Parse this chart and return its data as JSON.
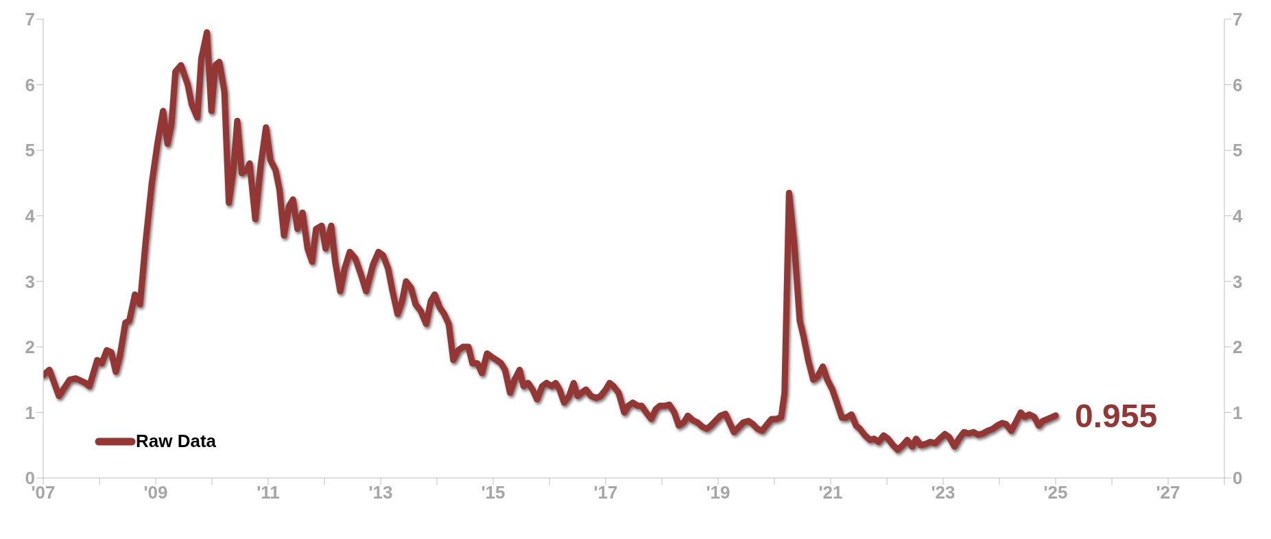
{
  "chart_data": {
    "type": "line",
    "x": [
      2007.0,
      2007.11,
      2007.28,
      2007.47,
      2007.58,
      2007.75,
      2007.82,
      2007.96,
      2008.04,
      2008.13,
      2008.21,
      2008.29,
      2008.36,
      2008.46,
      2008.53,
      2008.63,
      2008.72,
      2008.82,
      2008.93,
      2009.03,
      2009.13,
      2009.21,
      2009.28,
      2009.35,
      2009.45,
      2009.57,
      2009.64,
      2009.74,
      2009.81,
      2009.91,
      2009.99,
      2010.06,
      2010.13,
      2010.22,
      2010.3,
      2010.38,
      2010.45,
      2010.53,
      2010.62,
      2010.67,
      2010.77,
      2010.87,
      2010.96,
      2011.04,
      2011.13,
      2011.2,
      2011.28,
      2011.37,
      2011.44,
      2011.52,
      2011.61,
      2011.7,
      2011.78,
      2011.85,
      2011.95,
      2012.02,
      2012.12,
      2012.19,
      2012.28,
      2012.36,
      2012.45,
      2012.55,
      2012.65,
      2012.74,
      2012.86,
      2012.96,
      2013.04,
      2013.13,
      2013.21,
      2013.3,
      2013.38,
      2013.45,
      2013.54,
      2013.62,
      2013.71,
      2013.81,
      2013.89,
      2013.96,
      2014.05,
      2014.13,
      2014.21,
      2014.29,
      2014.38,
      2014.46,
      2014.56,
      2014.63,
      2014.72,
      2014.8,
      2014.89,
      2014.97,
      2015.06,
      2015.14,
      2015.21,
      2015.3,
      2015.38,
      2015.47,
      2015.54,
      2015.62,
      2015.7,
      2015.78,
      2015.87,
      2015.95,
      2016.04,
      2016.11,
      2016.18,
      2016.26,
      2016.35,
      2016.43,
      2016.5,
      2016.57,
      2016.65,
      2016.74,
      2016.83,
      2016.91,
      2017.0,
      2017.07,
      2017.14,
      2017.23,
      2017.33,
      2017.4,
      2017.48,
      2017.57,
      2017.64,
      2017.72,
      2017.81,
      2017.89,
      2017.96,
      2018.05,
      2018.13,
      2018.22,
      2018.3,
      2018.39,
      2018.46,
      2018.55,
      2018.63,
      2018.72,
      2018.8,
      2018.87,
      2018.96,
      2019.04,
      2019.13,
      2019.2,
      2019.28,
      2019.37,
      2019.45,
      2019.54,
      2019.62,
      2019.7,
      2019.78,
      2019.87,
      2019.95,
      2020.04,
      2020.12,
      2020.18,
      2020.26,
      2020.35,
      2020.45,
      2020.52,
      2020.6,
      2020.69,
      2020.77,
      2020.86,
      2020.94,
      2021.03,
      2021.11,
      2021.2,
      2021.28,
      2021.37,
      2021.45,
      2021.52,
      2021.61,
      2021.7,
      2021.77,
      2021.85,
      2021.94,
      2022.02,
      2022.11,
      2022.19,
      2022.28,
      2022.36,
      2022.45,
      2022.52,
      2022.6,
      2022.69,
      2022.77,
      2022.86,
      2022.94,
      2023.03,
      2023.11,
      2023.2,
      2023.28,
      2023.37,
      2023.45,
      2023.54,
      2023.62,
      2023.71,
      2023.79,
      2023.88,
      2023.96,
      2024.05,
      2024.12,
      2024.21,
      2024.29,
      2024.38,
      2024.45,
      2024.53,
      2024.62,
      2024.7,
      2024.77,
      2024.86,
      2024.94,
      2025.0
    ],
    "series": [
      {
        "name": "Raw Data",
        "color": "#943634",
        "values": [
          1.57,
          1.65,
          1.25,
          1.5,
          1.52,
          1.45,
          1.4,
          1.8,
          1.75,
          1.95,
          1.92,
          1.62,
          1.85,
          2.37,
          2.4,
          2.8,
          2.65,
          3.6,
          4.5,
          5.1,
          5.6,
          5.1,
          5.4,
          6.2,
          6.3,
          6.0,
          5.7,
          5.5,
          6.4,
          6.8,
          5.6,
          6.3,
          6.35,
          5.9,
          4.2,
          4.7,
          5.45,
          4.65,
          4.7,
          4.8,
          3.95,
          4.8,
          5.35,
          4.85,
          4.7,
          4.4,
          3.7,
          4.15,
          4.25,
          3.8,
          4.05,
          3.5,
          3.3,
          3.8,
          3.85,
          3.5,
          3.85,
          3.3,
          2.85,
          3.2,
          3.45,
          3.35,
          3.1,
          2.85,
          3.25,
          3.45,
          3.4,
          3.2,
          2.85,
          2.5,
          2.7,
          3.0,
          2.9,
          2.65,
          2.55,
          2.35,
          2.7,
          2.8,
          2.6,
          2.5,
          2.35,
          1.8,
          1.95,
          2.0,
          2.0,
          1.75,
          1.75,
          1.6,
          1.9,
          1.85,
          1.8,
          1.75,
          1.65,
          1.3,
          1.5,
          1.65,
          1.4,
          1.45,
          1.35,
          1.2,
          1.4,
          1.45,
          1.4,
          1.45,
          1.35,
          1.15,
          1.25,
          1.45,
          1.25,
          1.3,
          1.35,
          1.25,
          1.22,
          1.25,
          1.35,
          1.45,
          1.4,
          1.3,
          1.0,
          1.1,
          1.15,
          1.1,
          1.1,
          1.0,
          0.9,
          1.05,
          1.1,
          1.1,
          1.12,
          1.0,
          0.8,
          0.85,
          0.95,
          0.88,
          0.85,
          0.78,
          0.75,
          0.8,
          0.88,
          0.95,
          0.98,
          0.85,
          0.7,
          0.78,
          0.85,
          0.87,
          0.82,
          0.75,
          0.72,
          0.82,
          0.9,
          0.9,
          0.93,
          1.3,
          4.35,
          3.6,
          2.4,
          2.15,
          1.8,
          1.5,
          1.55,
          1.7,
          1.5,
          1.35,
          1.15,
          0.92,
          0.92,
          0.97,
          0.8,
          0.75,
          0.65,
          0.58,
          0.6,
          0.55,
          0.65,
          0.6,
          0.5,
          0.43,
          0.5,
          0.58,
          0.48,
          0.6,
          0.5,
          0.52,
          0.55,
          0.53,
          0.6,
          0.67,
          0.62,
          0.48,
          0.6,
          0.7,
          0.68,
          0.7,
          0.66,
          0.68,
          0.72,
          0.75,
          0.8,
          0.84,
          0.82,
          0.72,
          0.85,
          1.0,
          0.93,
          0.97,
          0.93,
          0.8,
          0.87,
          0.9,
          0.93,
          0.955
        ]
      }
    ],
    "xlim": [
      2007,
      2028
    ],
    "xticks": [
      {
        "value": 2007,
        "label": "'07"
      },
      {
        "value": 2008,
        "label": null
      },
      {
        "value": 2009,
        "label": "'09"
      },
      {
        "value": 2010,
        "label": null
      },
      {
        "value": 2011,
        "label": "'11"
      },
      {
        "value": 2012,
        "label": null
      },
      {
        "value": 2013,
        "label": "'13"
      },
      {
        "value": 2014,
        "label": null
      },
      {
        "value": 2015,
        "label": "'15"
      },
      {
        "value": 2016,
        "label": null
      },
      {
        "value": 2017,
        "label": "'17"
      },
      {
        "value": 2018,
        "label": null
      },
      {
        "value": 2019,
        "label": "'19"
      },
      {
        "value": 2020,
        "label": null
      },
      {
        "value": 2021,
        "label": "'21"
      },
      {
        "value": 2022,
        "label": null
      },
      {
        "value": 2023,
        "label": "'23"
      },
      {
        "value": 2024,
        "label": null
      },
      {
        "value": 2025,
        "label": "'25"
      },
      {
        "value": 2026,
        "label": null
      },
      {
        "value": 2027,
        "label": "'27"
      },
      {
        "value": 2028,
        "label": null
      }
    ],
    "ylim": [
      0,
      7
    ],
    "yticks": [
      0,
      1,
      2,
      3,
      4,
      5,
      6,
      7
    ],
    "y2lim": [
      0,
      7
    ],
    "y2ticks": [
      0,
      1,
      2,
      3,
      4,
      5,
      6,
      7
    ],
    "annotations": [
      {
        "text": "0.955",
        "x": 2025,
        "y": 0.955
      }
    ],
    "legend": "bottom left",
    "grid": false,
    "marker": "none",
    "line_style": "solid"
  }
}
